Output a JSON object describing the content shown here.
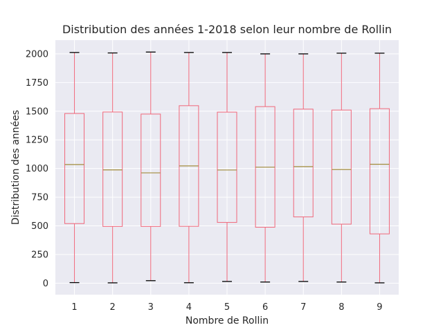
{
  "colors": {
    "axes_background": "#eaeaf2",
    "grid": "#ffffff",
    "box": "#f0677a",
    "median": "#a28c3c",
    "cap": "#000000",
    "text": "#262626"
  },
  "chart_data": {
    "type": "box",
    "title": "Distribution des années 1-2018 selon leur nombre de Rollin",
    "xlabel": "Nombre de Rollin",
    "ylabel": "Distribution des années",
    "categories": [
      "1",
      "2",
      "3",
      "4",
      "5",
      "6",
      "7",
      "8",
      "9"
    ],
    "yticks": [
      "0",
      "250",
      "500",
      "750",
      "1000",
      "1250",
      "1500",
      "1750",
      "2000"
    ],
    "ylim": [
      -100,
      2120
    ],
    "grid": true,
    "boxes": [
      {
        "min": 5,
        "q1": 520,
        "median": 1035,
        "q3": 1480,
        "max": 2012
      },
      {
        "min": 3,
        "q1": 495,
        "median": 988,
        "q3": 1493,
        "max": 2008
      },
      {
        "min": 22,
        "q1": 495,
        "median": 962,
        "q3": 1475,
        "max": 2016
      },
      {
        "min": 4,
        "q1": 496,
        "median": 1023,
        "q3": 1548,
        "max": 2012
      },
      {
        "min": 15,
        "q1": 530,
        "median": 987,
        "q3": 1492,
        "max": 2012
      },
      {
        "min": 10,
        "q1": 488,
        "median": 1012,
        "q3": 1540,
        "max": 2000
      },
      {
        "min": 15,
        "q1": 578,
        "median": 1017,
        "q3": 1518,
        "max": 2000
      },
      {
        "min": 10,
        "q1": 515,
        "median": 992,
        "q3": 1510,
        "max": 2006
      },
      {
        "min": 3,
        "q1": 430,
        "median": 1037,
        "q3": 1522,
        "max": 2006
      }
    ]
  }
}
